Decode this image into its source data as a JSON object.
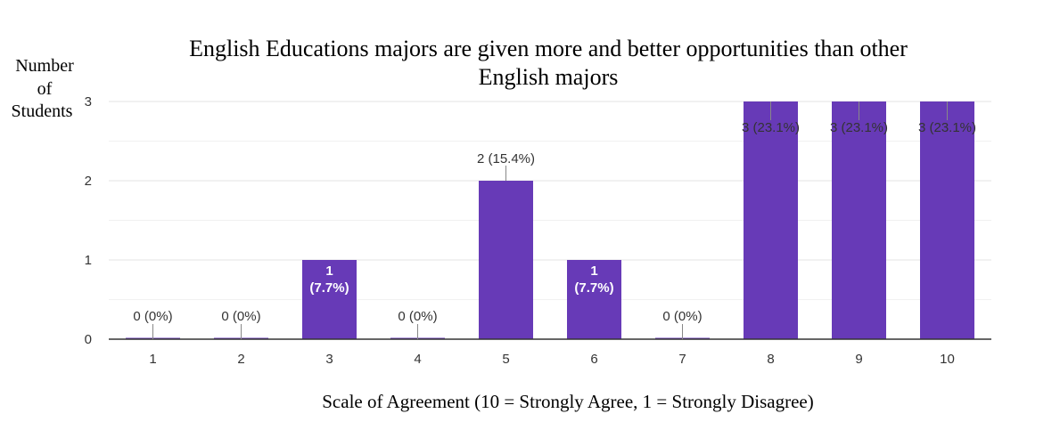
{
  "chart_data": {
    "type": "bar",
    "title_lines": [
      "English Educations majors are given more and better opportunities than other",
      "English majors"
    ],
    "ylabel_lines": [
      "Number",
      "of",
      "Students"
    ],
    "xlabel": "Scale of Agreement (10 = Strongly Agree, 1 = Strongly Disagree)",
    "categories": [
      "1",
      "2",
      "3",
      "4",
      "5",
      "6",
      "7",
      "8",
      "9",
      "10"
    ],
    "values": [
      0,
      0,
      1,
      0,
      2,
      1,
      0,
      3,
      3,
      3
    ],
    "data_labels": [
      "0 (0%)",
      "0 (0%)",
      "1 (7.7%)",
      "0 (0%)",
      "2 (15.4%)",
      "1 (7.7%)",
      "0 (0%)",
      "3 (23.1%)",
      "3 (23.1%)",
      "3 (23.1%)"
    ],
    "y_ticks": [
      "0",
      "1",
      "2",
      "3"
    ],
    "ylim": [
      0,
      3
    ],
    "grid": true,
    "bar_color": "#673ab7"
  }
}
